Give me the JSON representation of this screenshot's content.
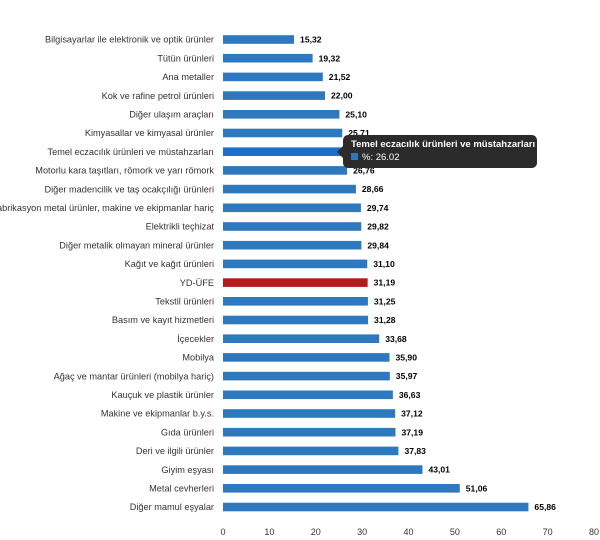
{
  "chart_data": {
    "type": "bar",
    "orientation": "horizontal",
    "categories": [
      "Bilgisayarlar ile elektronik ve optik ürünler",
      "Tütün ürünleri",
      "Ana metaller",
      "Kok ve rafine petrol ürünleri",
      "Diğer ulaşım araçları",
      "Kimyasallar ve kimyasal ürünler",
      "Temel eczacılık ürünleri ve müstahzarları",
      "Motorlu kara taşıtları, römork ve yarı römork",
      "Diğer madencilik ve taş ocakçılığı ürünleri",
      "Fabrikasyon metal ürünler, makine ve ekipmanlar hariç",
      "Elektrikli teçhizat",
      "Diğer metalik olmayan mineral ürünler",
      "Kağıt ve kağıt ürünleri",
      "YD-ÜFE",
      "Tekstil ürünleri",
      "Basım ve kayıt hizmetleri",
      "İçecekler",
      "Mobilya",
      "Ağaç ve mantar ürünleri (mobilya hariç)",
      "Kauçuk ve plastik ürünler",
      "Makine ve ekipmanlar b.y.s.",
      "Gıda ürünleri",
      "Deri ve ilgili ürünler",
      "Giyim eşyası",
      "Metal cevherleri",
      "Diğer mamul eşyalar"
    ],
    "values": [
      15.32,
      19.32,
      21.52,
      22.0,
      25.1,
      25.71,
      26.02,
      26.76,
      28.66,
      29.74,
      29.82,
      29.84,
      31.1,
      31.19,
      31.25,
      31.28,
      33.68,
      35.9,
      35.97,
      36.63,
      37.12,
      37.19,
      37.83,
      43.01,
      51.06,
      65.86
    ],
    "value_labels": [
      "15,32",
      "19,32",
      "21,52",
      "22,00",
      "25,10",
      "25,71",
      "",
      "26,76",
      "28,66",
      "29,74",
      "29,82",
      "29,84",
      "31,10",
      "31,19",
      "31,25",
      "31,28",
      "33,68",
      "35,90",
      "35,97",
      "36,63",
      "37,12",
      "37,19",
      "37,83",
      "43,01",
      "51,06",
      "65,86"
    ],
    "xlim": [
      0,
      80
    ],
    "x_ticks": [
      0,
      10,
      20,
      30,
      40,
      50,
      60,
      70,
      80
    ],
    "highlight_index": 13,
    "hover_index": 6,
    "grid": false,
    "title": "",
    "xlabel": "",
    "ylabel": ""
  },
  "colors": {
    "bar": "#2e78bd",
    "highlight": "#b31b1e",
    "hover": "#1a6fc8",
    "tooltip_swatch": "#2e78bd"
  },
  "tooltip": {
    "title": "Temel eczacılık ürünleri ve müstahzarları",
    "value_text": "%: 26.02"
  }
}
